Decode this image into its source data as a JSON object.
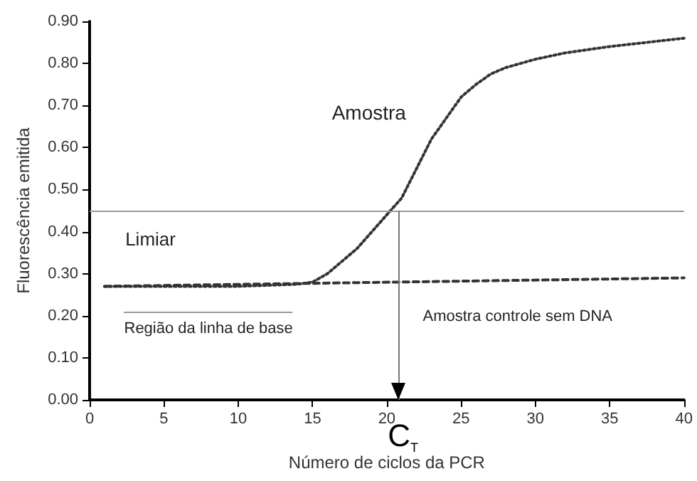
{
  "chart_data": {
    "type": "line",
    "xlabel": "Número de ciclos da PCR",
    "ylabel": "Fluorescência emitida",
    "series": [
      {
        "name": "Amostra",
        "color": "#333333",
        "line_style": "dotted",
        "x": [
          1,
          5,
          10,
          14,
          15,
          16,
          17,
          18,
          19,
          20,
          21,
          22,
          23,
          24,
          25,
          26,
          27,
          28,
          29,
          30,
          32,
          35,
          38,
          40
        ],
        "values": [
          0.27,
          0.27,
          0.27,
          0.275,
          0.28,
          0.3,
          0.33,
          0.36,
          0.4,
          0.44,
          0.48,
          0.55,
          0.62,
          0.67,
          0.72,
          0.75,
          0.775,
          0.79,
          0.8,
          0.81,
          0.825,
          0.84,
          0.852,
          0.86
        ]
      },
      {
        "name": "Amostra controle sem DNA",
        "color": "#333333",
        "line_style": "dashed",
        "x": [
          1,
          40
        ],
        "values": [
          0.27,
          0.29
        ]
      }
    ],
    "xlim": [
      0,
      40
    ],
    "xticks": [
      0,
      5,
      10,
      15,
      20,
      25,
      30,
      35,
      40
    ],
    "ylim": [
      0,
      0.9
    ],
    "yticks": [
      {
        "value": 0,
        "label": "0.00"
      },
      {
        "value": 0.1,
        "label": "0.10"
      },
      {
        "value": 0.2,
        "label": "0.20"
      },
      {
        "value": 0.3,
        "label": "0.30"
      },
      {
        "value": 0.4,
        "label": "0.40"
      },
      {
        "value": 0.5,
        "label": "0.50"
      },
      {
        "value": 0.6,
        "label": "0.60"
      },
      {
        "value": 0.7,
        "label": "0.70"
      },
      {
        "value": 0.8,
        "label": "0.80"
      },
      {
        "value": 0.9,
        "label": "0.90"
      }
    ],
    "ref_lines": [
      {
        "axis": "y",
        "value": 0.45,
        "label": "Limiar",
        "color": "#999999"
      },
      {
        "axis": "x",
        "value": 20.8,
        "label": "C$_{T}$",
        "color": "#777777"
      }
    ],
    "annotations": [
      "Região da linha de base"
    ],
    "marker": "none",
    "grid": false,
    "legend": false
  }
}
